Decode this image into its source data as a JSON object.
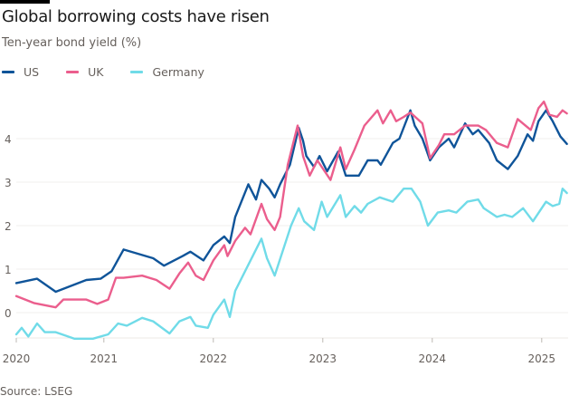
{
  "chart_data": {
    "type": "line",
    "title": "Global borrowing costs have risen",
    "subtitle": "Ten-year bond yield (%)",
    "source": "Source: LSEG",
    "xlabel": "",
    "ylabel": "Ten-year bond yield (%)",
    "ylim": [
      -0.58,
      4.9
    ],
    "xlim": [
      2020.2,
      2025.25
    ],
    "grid": true,
    "legend_placement": "top-left",
    "y_ticks": [
      0,
      1,
      2,
      3,
      4
    ],
    "y_tick_labels": [
      "0",
      "1",
      "2",
      "3",
      "4"
    ],
    "x_ticks": [
      {
        "value": 2020.2,
        "label": "2020"
      },
      {
        "value": 2021,
        "label": "2021"
      },
      {
        "value": 2022,
        "label": "2022"
      },
      {
        "value": 2023,
        "label": "2023"
      },
      {
        "value": 2024,
        "label": "2024"
      },
      {
        "value": 2025,
        "label": "2025"
      }
    ],
    "series": [
      {
        "name": "US",
        "color": "#0f5499",
        "points": [
          [
            2020.2,
            0.68
          ],
          [
            2020.39,
            0.78
          ],
          [
            2020.56,
            0.48
          ],
          [
            2020.84,
            0.75
          ],
          [
            2020.97,
            0.78
          ],
          [
            2021.07,
            0.95
          ],
          [
            2021.18,
            1.45
          ],
          [
            2021.45,
            1.25
          ],
          [
            2021.55,
            1.08
          ],
          [
            2021.72,
            1.3
          ],
          [
            2021.79,
            1.4
          ],
          [
            2021.91,
            1.2
          ],
          [
            2022.0,
            1.55
          ],
          [
            2022.1,
            1.75
          ],
          [
            2022.15,
            1.6
          ],
          [
            2022.2,
            2.2
          ],
          [
            2022.32,
            2.95
          ],
          [
            2022.39,
            2.6
          ],
          [
            2022.44,
            3.05
          ],
          [
            2022.51,
            2.85
          ],
          [
            2022.56,
            2.65
          ],
          [
            2022.61,
            2.95
          ],
          [
            2022.7,
            3.4
          ],
          [
            2022.78,
            4.25
          ],
          [
            2022.82,
            3.95
          ],
          [
            2022.85,
            3.6
          ],
          [
            2022.92,
            3.35
          ],
          [
            2022.97,
            3.6
          ],
          [
            2023.04,
            3.25
          ],
          [
            2023.14,
            3.7
          ],
          [
            2023.21,
            3.15
          ],
          [
            2023.33,
            3.15
          ],
          [
            2023.41,
            3.5
          ],
          [
            2023.5,
            3.5
          ],
          [
            2023.53,
            3.4
          ],
          [
            2023.64,
            3.9
          ],
          [
            2023.7,
            4.0
          ],
          [
            2023.8,
            4.65
          ],
          [
            2023.84,
            4.3
          ],
          [
            2023.91,
            4.0
          ],
          [
            2023.98,
            3.5
          ],
          [
            2024.06,
            3.8
          ],
          [
            2024.15,
            4.0
          ],
          [
            2024.2,
            3.8
          ],
          [
            2024.3,
            4.35
          ],
          [
            2024.37,
            4.1
          ],
          [
            2024.42,
            4.2
          ],
          [
            2024.52,
            3.9
          ],
          [
            2024.59,
            3.5
          ],
          [
            2024.69,
            3.3
          ],
          [
            2024.78,
            3.6
          ],
          [
            2024.87,
            4.1
          ],
          [
            2024.92,
            3.95
          ],
          [
            2024.97,
            4.4
          ],
          [
            2025.04,
            4.65
          ],
          [
            2025.1,
            4.4
          ],
          [
            2025.17,
            4.05
          ],
          [
            2025.23,
            3.88
          ]
        ]
      },
      {
        "name": "UK",
        "color": "#eb5e8d",
        "points": [
          [
            2020.2,
            0.38
          ],
          [
            2020.36,
            0.22
          ],
          [
            2020.56,
            0.12
          ],
          [
            2020.63,
            0.3
          ],
          [
            2020.84,
            0.3
          ],
          [
            2020.94,
            0.2
          ],
          [
            2021.04,
            0.3
          ],
          [
            2021.11,
            0.8
          ],
          [
            2021.18,
            0.8
          ],
          [
            2021.35,
            0.85
          ],
          [
            2021.48,
            0.75
          ],
          [
            2021.6,
            0.55
          ],
          [
            2021.69,
            0.9
          ],
          [
            2021.77,
            1.15
          ],
          [
            2021.84,
            0.85
          ],
          [
            2021.91,
            0.75
          ],
          [
            2022.0,
            1.2
          ],
          [
            2022.1,
            1.55
          ],
          [
            2022.13,
            1.3
          ],
          [
            2022.2,
            1.65
          ],
          [
            2022.29,
            1.95
          ],
          [
            2022.34,
            1.8
          ],
          [
            2022.44,
            2.5
          ],
          [
            2022.49,
            2.15
          ],
          [
            2022.56,
            1.9
          ],
          [
            2022.61,
            2.2
          ],
          [
            2022.68,
            3.4
          ],
          [
            2022.77,
            4.3
          ],
          [
            2022.82,
            3.6
          ],
          [
            2022.88,
            3.15
          ],
          [
            2022.95,
            3.5
          ],
          [
            2023.07,
            3.05
          ],
          [
            2023.16,
            3.8
          ],
          [
            2023.21,
            3.3
          ],
          [
            2023.29,
            3.75
          ],
          [
            2023.38,
            4.3
          ],
          [
            2023.5,
            4.65
          ],
          [
            2023.55,
            4.35
          ],
          [
            2023.62,
            4.65
          ],
          [
            2023.67,
            4.4
          ],
          [
            2023.74,
            4.5
          ],
          [
            2023.8,
            4.6
          ],
          [
            2023.91,
            4.35
          ],
          [
            2023.98,
            3.55
          ],
          [
            2024.06,
            3.85
          ],
          [
            2024.11,
            4.1
          ],
          [
            2024.2,
            4.1
          ],
          [
            2024.3,
            4.3
          ],
          [
            2024.42,
            4.3
          ],
          [
            2024.49,
            4.2
          ],
          [
            2024.59,
            3.9
          ],
          [
            2024.69,
            3.8
          ],
          [
            2024.78,
            4.45
          ],
          [
            2024.9,
            4.2
          ],
          [
            2024.97,
            4.7
          ],
          [
            2025.02,
            4.85
          ],
          [
            2025.07,
            4.55
          ],
          [
            2025.14,
            4.5
          ],
          [
            2025.19,
            4.65
          ],
          [
            2025.23,
            4.58
          ]
        ]
      },
      {
        "name": "Germany",
        "color": "#70dbe8",
        "points": [
          [
            2020.2,
            -0.5
          ],
          [
            2020.25,
            -0.35
          ],
          [
            2020.31,
            -0.55
          ],
          [
            2020.39,
            -0.25
          ],
          [
            2020.46,
            -0.45
          ],
          [
            2020.56,
            -0.45
          ],
          [
            2020.73,
            -0.6
          ],
          [
            2020.9,
            -0.6
          ],
          [
            2021.04,
            -0.5
          ],
          [
            2021.13,
            -0.25
          ],
          [
            2021.21,
            -0.3
          ],
          [
            2021.35,
            -0.12
          ],
          [
            2021.45,
            -0.2
          ],
          [
            2021.6,
            -0.48
          ],
          [
            2021.69,
            -0.2
          ],
          [
            2021.79,
            -0.1
          ],
          [
            2021.84,
            -0.3
          ],
          [
            2021.95,
            -0.35
          ],
          [
            2022.0,
            -0.05
          ],
          [
            2022.1,
            0.3
          ],
          [
            2022.15,
            -0.1
          ],
          [
            2022.2,
            0.5
          ],
          [
            2022.32,
            1.1
          ],
          [
            2022.44,
            1.7
          ],
          [
            2022.49,
            1.25
          ],
          [
            2022.56,
            0.85
          ],
          [
            2022.71,
            2.0
          ],
          [
            2022.78,
            2.4
          ],
          [
            2022.83,
            2.1
          ],
          [
            2022.92,
            1.9
          ],
          [
            2022.99,
            2.55
          ],
          [
            2023.04,
            2.2
          ],
          [
            2023.16,
            2.7
          ],
          [
            2023.21,
            2.2
          ],
          [
            2023.29,
            2.45
          ],
          [
            2023.35,
            2.3
          ],
          [
            2023.41,
            2.5
          ],
          [
            2023.52,
            2.65
          ],
          [
            2023.64,
            2.55
          ],
          [
            2023.74,
            2.85
          ],
          [
            2023.81,
            2.85
          ],
          [
            2023.89,
            2.55
          ],
          [
            2023.96,
            2.0
          ],
          [
            2024.05,
            2.3
          ],
          [
            2024.15,
            2.35
          ],
          [
            2024.22,
            2.3
          ],
          [
            2024.32,
            2.55
          ],
          [
            2024.42,
            2.6
          ],
          [
            2024.47,
            2.4
          ],
          [
            2024.59,
            2.2
          ],
          [
            2024.66,
            2.25
          ],
          [
            2024.73,
            2.2
          ],
          [
            2024.83,
            2.4
          ],
          [
            2024.92,
            2.1
          ],
          [
            2025.04,
            2.55
          ],
          [
            2025.1,
            2.45
          ],
          [
            2025.16,
            2.5
          ],
          [
            2025.19,
            2.85
          ],
          [
            2025.23,
            2.75
          ]
        ]
      }
    ]
  }
}
